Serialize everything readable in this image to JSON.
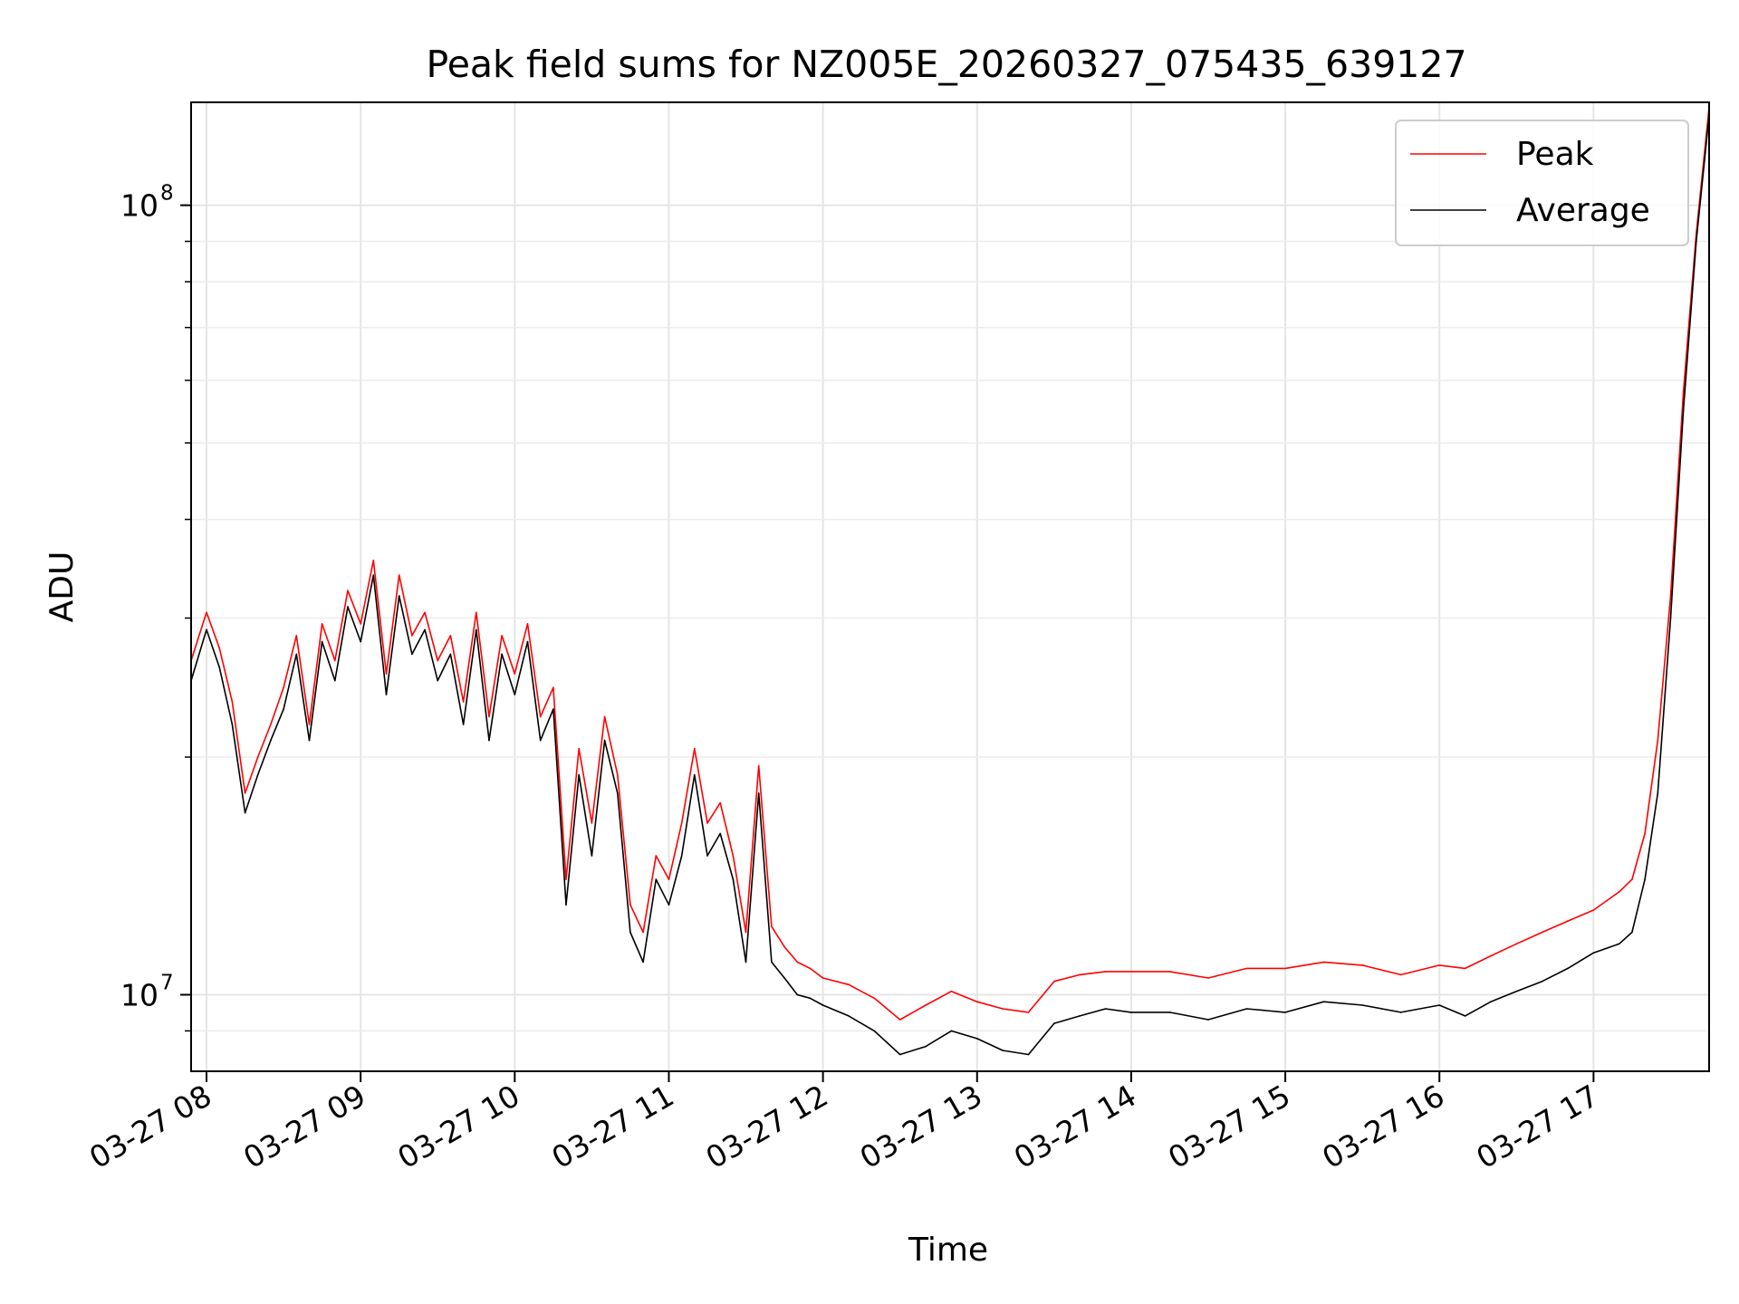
{
  "chart_data": {
    "type": "line",
    "title": "Peak field sums for NZ005E_20260327_075435_639127",
    "xlabel": "Time",
    "ylabel": "ADU",
    "x_scale": "time",
    "y_scale": "log",
    "xlim": [
      "2026-03-27 07:54",
      "2026-03-27 17:45"
    ],
    "ylim": [
      8000000,
      135000000
    ],
    "x_ticks": [
      "2026-03-27 08:00",
      "2026-03-27 09:00",
      "2026-03-27 10:00",
      "2026-03-27 11:00",
      "2026-03-27 12:00",
      "2026-03-27 13:00",
      "2026-03-27 14:00",
      "2026-03-27 15:00",
      "2026-03-27 16:00",
      "2026-03-27 17:00"
    ],
    "x_tick_labels": [
      "03-27 08",
      "03-27 09",
      "03-27 10",
      "03-27 11",
      "03-27 12",
      "03-27 13",
      "03-27 14",
      "03-27 15",
      "03-27 16",
      "03-27 17"
    ],
    "y_ticks": [
      10000000,
      100000000
    ],
    "y_tick_labels": [
      {
        "base": "10",
        "exp": "7"
      },
      {
        "base": "10",
        "exp": "8"
      }
    ],
    "grid": true,
    "legend_position": "top-right",
    "series": [
      {
        "name": "Average",
        "color": "#000000",
        "x": [
          "2026-03-27 07:54",
          "2026-03-27 08:00",
          "2026-03-27 08:05",
          "2026-03-27 08:10",
          "2026-03-27 08:15",
          "2026-03-27 08:20",
          "2026-03-27 08:25",
          "2026-03-27 08:30",
          "2026-03-27 08:35",
          "2026-03-27 08:40",
          "2026-03-27 08:45",
          "2026-03-27 08:50",
          "2026-03-27 08:55",
          "2026-03-27 09:00",
          "2026-03-27 09:05",
          "2026-03-27 09:10",
          "2026-03-27 09:15",
          "2026-03-27 09:20",
          "2026-03-27 09:25",
          "2026-03-27 09:30",
          "2026-03-27 09:35",
          "2026-03-27 09:40",
          "2026-03-27 09:45",
          "2026-03-27 09:50",
          "2026-03-27 09:55",
          "2026-03-27 10:00",
          "2026-03-27 10:05",
          "2026-03-27 10:10",
          "2026-03-27 10:15",
          "2026-03-27 10:20",
          "2026-03-27 10:25",
          "2026-03-27 10:30",
          "2026-03-27 10:35",
          "2026-03-27 10:40",
          "2026-03-27 10:45",
          "2026-03-27 10:50",
          "2026-03-27 10:55",
          "2026-03-27 11:00",
          "2026-03-27 11:05",
          "2026-03-27 11:10",
          "2026-03-27 11:15",
          "2026-03-27 11:20",
          "2026-03-27 11:25",
          "2026-03-27 11:30",
          "2026-03-27 11:35",
          "2026-03-27 11:40",
          "2026-03-27 11:45",
          "2026-03-27 11:50",
          "2026-03-27 11:55",
          "2026-03-27 12:00",
          "2026-03-27 12:10",
          "2026-03-27 12:20",
          "2026-03-27 12:30",
          "2026-03-27 12:40",
          "2026-03-27 12:50",
          "2026-03-27 13:00",
          "2026-03-27 13:10",
          "2026-03-27 13:20",
          "2026-03-27 13:30",
          "2026-03-27 13:40",
          "2026-03-27 13:50",
          "2026-03-27 14:00",
          "2026-03-27 14:15",
          "2026-03-27 14:30",
          "2026-03-27 14:45",
          "2026-03-27 15:00",
          "2026-03-27 15:15",
          "2026-03-27 15:30",
          "2026-03-27 15:45",
          "2026-03-27 16:00",
          "2026-03-27 16:10",
          "2026-03-27 16:20",
          "2026-03-27 16:30",
          "2026-03-27 16:40",
          "2026-03-27 16:50",
          "2026-03-27 17:00",
          "2026-03-27 17:10",
          "2026-03-27 17:15",
          "2026-03-27 17:20",
          "2026-03-27 17:25",
          "2026-03-27 17:30",
          "2026-03-27 17:35",
          "2026-03-27 17:40",
          "2026-03-27 17:45"
        ],
        "y": [
          25000000,
          29000000,
          26000000,
          22000000,
          17000000,
          19000000,
          21000000,
          23000000,
          27000000,
          21000000,
          28000000,
          25000000,
          31000000,
          28000000,
          34000000,
          24000000,
          32000000,
          27000000,
          29000000,
          25000000,
          27000000,
          22000000,
          29000000,
          21000000,
          27000000,
          24000000,
          28000000,
          21000000,
          23000000,
          13000000,
          19000000,
          15000000,
          21000000,
          18000000,
          12000000,
          11000000,
          14000000,
          13000000,
          15000000,
          19000000,
          15000000,
          16000000,
          14000000,
          11000000,
          18000000,
          11000000,
          10500000,
          10000000,
          9900000,
          9700000,
          9400000,
          9000000,
          8400000,
          8600000,
          9000000,
          8800000,
          8500000,
          8400000,
          9200000,
          9400000,
          9600000,
          9500000,
          9500000,
          9300000,
          9600000,
          9500000,
          9800000,
          9700000,
          9500000,
          9700000,
          9400000,
          9800000,
          10100000,
          10400000,
          10800000,
          11300000,
          11600000,
          12000000,
          14000000,
          18000000,
          30000000,
          55000000,
          90000000,
          130000000
        ]
      },
      {
        "name": "Peak",
        "color": "#ff0000",
        "x": [
          "2026-03-27 07:54",
          "2026-03-27 08:00",
          "2026-03-27 08:05",
          "2026-03-27 08:10",
          "2026-03-27 08:15",
          "2026-03-27 08:20",
          "2026-03-27 08:25",
          "2026-03-27 08:30",
          "2026-03-27 08:35",
          "2026-03-27 08:40",
          "2026-03-27 08:45",
          "2026-03-27 08:50",
          "2026-03-27 08:55",
          "2026-03-27 09:00",
          "2026-03-27 09:05",
          "2026-03-27 09:10",
          "2026-03-27 09:15",
          "2026-03-27 09:20",
          "2026-03-27 09:25",
          "2026-03-27 09:30",
          "2026-03-27 09:35",
          "2026-03-27 09:40",
          "2026-03-27 09:45",
          "2026-03-27 09:50",
          "2026-03-27 09:55",
          "2026-03-27 10:00",
          "2026-03-27 10:05",
          "2026-03-27 10:10",
          "2026-03-27 10:15",
          "2026-03-27 10:20",
          "2026-03-27 10:25",
          "2026-03-27 10:30",
          "2026-03-27 10:35",
          "2026-03-27 10:40",
          "2026-03-27 10:45",
          "2026-03-27 10:50",
          "2026-03-27 10:55",
          "2026-03-27 11:00",
          "2026-03-27 11:05",
          "2026-03-27 11:10",
          "2026-03-27 11:15",
          "2026-03-27 11:20",
          "2026-03-27 11:25",
          "2026-03-27 11:30",
          "2026-03-27 11:35",
          "2026-03-27 11:40",
          "2026-03-27 11:45",
          "2026-03-27 11:50",
          "2026-03-27 11:55",
          "2026-03-27 12:00",
          "2026-03-27 12:10",
          "2026-03-27 12:20",
          "2026-03-27 12:30",
          "2026-03-27 12:40",
          "2026-03-27 12:50",
          "2026-03-27 13:00",
          "2026-03-27 13:10",
          "2026-03-27 13:20",
          "2026-03-27 13:30",
          "2026-03-27 13:40",
          "2026-03-27 13:50",
          "2026-03-27 14:00",
          "2026-03-27 14:15",
          "2026-03-27 14:30",
          "2026-03-27 14:45",
          "2026-03-27 15:00",
          "2026-03-27 15:15",
          "2026-03-27 15:30",
          "2026-03-27 15:45",
          "2026-03-27 16:00",
          "2026-03-27 16:10",
          "2026-03-27 16:20",
          "2026-03-27 16:30",
          "2026-03-27 16:40",
          "2026-03-27 16:50",
          "2026-03-27 17:00",
          "2026-03-27 17:10",
          "2026-03-27 17:15",
          "2026-03-27 17:20",
          "2026-03-27 17:25",
          "2026-03-27 17:30",
          "2026-03-27 17:35",
          "2026-03-27 17:40",
          "2026-03-27 17:45"
        ],
        "y": [
          26500000,
          30500000,
          27500000,
          23500000,
          18000000,
          20000000,
          22000000,
          24500000,
          28500000,
          22000000,
          29500000,
          26500000,
          32500000,
          29500000,
          35500000,
          25500000,
          34000000,
          28500000,
          30500000,
          26500000,
          28500000,
          23500000,
          30500000,
          22500000,
          28500000,
          25500000,
          29500000,
          22500000,
          24500000,
          14000000,
          20500000,
          16500000,
          22500000,
          19000000,
          13000000,
          12000000,
          15000000,
          14000000,
          16500000,
          20500000,
          16500000,
          17500000,
          15000000,
          12000000,
          19500000,
          12200000,
          11500000,
          11000000,
          10800000,
          10500000,
          10300000,
          9900000,
          9300000,
          9700000,
          10100000,
          9800000,
          9600000,
          9500000,
          10400000,
          10600000,
          10700000,
          10700000,
          10700000,
          10500000,
          10800000,
          10800000,
          11000000,
          10900000,
          10600000,
          10900000,
          10800000,
          11200000,
          11600000,
          12000000,
          12400000,
          12800000,
          13500000,
          14000000,
          16000000,
          21000000,
          32000000,
          58000000,
          92000000,
          133000000
        ]
      }
    ]
  }
}
